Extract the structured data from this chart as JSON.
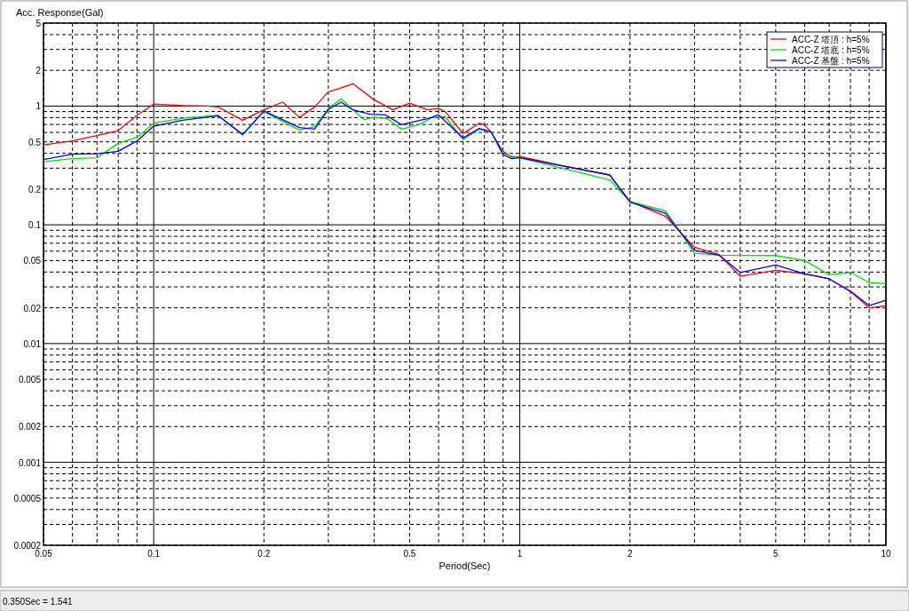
{
  "chart_data": {
    "type": "line",
    "xlabel": "Period(Sec)",
    "ylabel": "Acc. Response(Gal)",
    "log": "xy",
    "grid": true,
    "legend": "top right",
    "line_style": "solid",
    "xlim": [
      0.05,
      10
    ],
    "xticks": [
      0.05,
      0.1,
      0.2,
      0.5,
      1,
      2,
      5,
      10
    ],
    "ylim": [
      0.0002,
      5
    ],
    "yticks": [
      0.0002,
      0.0005,
      0.001,
      0.002,
      0.005,
      0.01,
      0.02,
      0.05,
      0.1,
      0.2,
      0.5,
      1,
      2,
      5
    ],
    "annotations": [
      "0.350Sec = 1.541"
    ],
    "series": [
      {
        "name": "ACC-Z 塔頂 : h=5%",
        "color": "#ff0000",
        "x": [
          0.05,
          0.06,
          0.07,
          0.08,
          0.09,
          0.1,
          0.12,
          0.14,
          0.15,
          0.175,
          0.2,
          0.225,
          0.25,
          0.275,
          0.3,
          0.32,
          0.35,
          0.4,
          0.45,
          0.5,
          0.56,
          0.6,
          0.625,
          0.7,
          0.775,
          0.8,
          0.835,
          0.867,
          0.9,
          0.95,
          1.0,
          1.38,
          1.76,
          2.0,
          2.5,
          3.0,
          3.5,
          4.0,
          5.0,
          6.0,
          7.0,
          8.0,
          9.0,
          10
        ],
        "values": [
          0.472,
          0.509,
          0.564,
          0.621,
          0.838,
          1.04,
          1.01,
          1.0,
          0.983,
          0.76,
          0.93,
          1.08,
          0.804,
          0.98,
          1.32,
          1.4,
          1.541,
          1.13,
          0.93,
          1.06,
          0.93,
          0.955,
          0.9,
          0.587,
          0.718,
          0.697,
          0.604,
          0.494,
          0.416,
          0.371,
          0.376,
          0.304,
          0.263,
          0.157,
          0.118,
          0.0647,
          0.0561,
          0.0369,
          0.0414,
          0.0387,
          0.0351,
          0.0274,
          0.02,
          0.0209
        ]
      },
      {
        "name": "ACC-Z 塔底 : h=5%",
        "color": "#00e000",
        "x": [
          0.05,
          0.06,
          0.07,
          0.08,
          0.09,
          0.1,
          0.12,
          0.15,
          0.175,
          0.2,
          0.25,
          0.275,
          0.3,
          0.325,
          0.375,
          0.4,
          0.435,
          0.475,
          0.53,
          0.575,
          0.625,
          0.7,
          0.775,
          0.835,
          0.867,
          0.9,
          1.0,
          1.38,
          1.76,
          2.0,
          2.5,
          3.0,
          3.5,
          5.0,
          6.0,
          7.0,
          8.0,
          9.0,
          10
        ],
        "values": [
          0.34,
          0.361,
          0.367,
          0.486,
          0.545,
          0.718,
          0.79,
          0.838,
          0.57,
          0.9,
          0.629,
          0.67,
          0.955,
          1.15,
          0.769,
          0.804,
          0.782,
          0.64,
          0.697,
          0.796,
          0.818,
          0.523,
          0.64,
          0.604,
          0.48,
          0.394,
          0.367,
          0.287,
          0.239,
          0.157,
          0.131,
          0.0577,
          0.0555,
          0.0551,
          0.05,
          0.038,
          0.0397,
          0.0326,
          0.032
        ]
      },
      {
        "name": "ACC-Z 基盤 : h=5%",
        "color": "#0000ff",
        "x": [
          0.05,
          0.06,
          0.07,
          0.08,
          0.09,
          0.1,
          0.12,
          0.15,
          0.175,
          0.2,
          0.25,
          0.275,
          0.3,
          0.325,
          0.35,
          0.39,
          0.43,
          0.475,
          0.5,
          0.56,
          0.6,
          0.7,
          0.775,
          0.835,
          0.867,
          0.9,
          0.95,
          1.0,
          1.76,
          2.0,
          2.5,
          3.0,
          3.5,
          4.0,
          5.0,
          6.0,
          7.0,
          8.0,
          9.0,
          10
        ],
        "values": [
          0.355,
          0.394,
          0.397,
          0.416,
          0.509,
          0.677,
          0.76,
          0.828,
          0.577,
          0.91,
          0.659,
          0.64,
          0.938,
          1.08,
          0.93,
          0.853,
          0.842,
          0.697,
          0.725,
          0.782,
          0.842,
          0.539,
          0.648,
          0.604,
          0.494,
          0.389,
          0.361,
          0.367,
          0.263,
          0.155,
          0.125,
          0.061,
          0.0555,
          0.0397,
          0.0459,
          0.0387,
          0.0351,
          0.0277,
          0.0209,
          0.0231
        ]
      }
    ]
  }
}
